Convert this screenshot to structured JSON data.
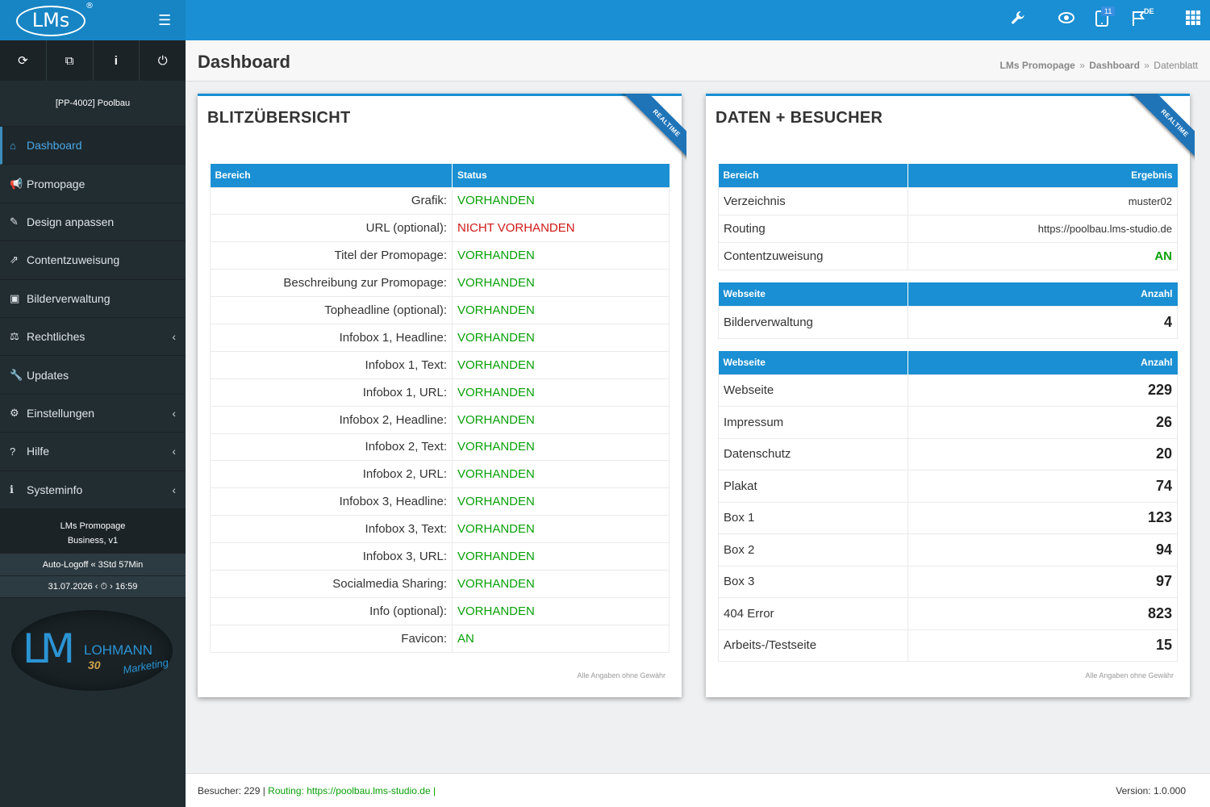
{
  "topbar": {
    "logo_text": "LMs",
    "logo_reg": "®",
    "menu_icon": "☰",
    "icons": [
      "wrench-icon",
      "eye-icon",
      "tablet-icon",
      "flag-icon",
      "grid-icon"
    ],
    "badge_count": "11",
    "flag_label": "DE"
  },
  "sidebar": {
    "tools": [
      "⟳",
      "⧉",
      "i",
      "⏻"
    ],
    "project": "[PP-4002] Poolbau",
    "items": [
      {
        "label": "Dashboard",
        "icon": "⌂"
      },
      {
        "label": "Promopage",
        "icon": "📢"
      },
      {
        "label": "Design anpassen",
        "icon": "✎"
      },
      {
        "label": "Contentzuweisung",
        "icon": "⇗"
      },
      {
        "label": "Bilderverwaltung",
        "icon": "▣"
      },
      {
        "label": "Rechtliches",
        "icon": "⚖",
        "chev": "‹"
      },
      {
        "label": "Updates",
        "icon": "🔧"
      },
      {
        "label": "Einstellungen",
        "icon": "⚙",
        "chev": "‹"
      },
      {
        "label": "Hilfe",
        "icon": "?",
        "chev": "‹"
      },
      {
        "label": "Systeminfo",
        "icon": "ℹ",
        "chev": "‹"
      }
    ],
    "version_line1": "LMs Promopage",
    "version_line2": "Business, v1",
    "autologoff": "Auto-Logoff « 3Std 57Min",
    "datetime": "31.07.2026 ‹ ⏱ › 16:59",
    "brand": {
      "lm": "LM",
      "lohmann": "LOHMANN",
      "jahre": "30",
      "marketing": "Marketing"
    }
  },
  "header": {
    "title": "Dashboard",
    "breadcrumb": [
      "LMs Promopage",
      "Dashboard",
      "Datenblatt"
    ],
    "breadcrumb_sep": "»"
  },
  "left_panel": {
    "title": "BLITZÜBERSICHT",
    "ribbon": "REALTIME",
    "columns": [
      "Bereich",
      "Status"
    ],
    "rows": [
      {
        "k": "Grafik:",
        "v": "VORHANDEN",
        "state": "ok"
      },
      {
        "k": "URL (optional):",
        "v": "NICHT VORHANDEN",
        "state": "bad"
      },
      {
        "k": "Titel der Promopage:",
        "v": "VORHANDEN",
        "state": "ok"
      },
      {
        "k": "Beschreibung zur Promopage:",
        "v": "VORHANDEN",
        "state": "ok"
      },
      {
        "k": "Topheadline (optional):",
        "v": "VORHANDEN",
        "state": "ok"
      },
      {
        "k": "Infobox 1, Headline:",
        "v": "VORHANDEN",
        "state": "ok"
      },
      {
        "k": "Infobox 1, Text:",
        "v": "VORHANDEN",
        "state": "ok"
      },
      {
        "k": "Infobox 1, URL:",
        "v": "VORHANDEN",
        "state": "ok"
      },
      {
        "k": "Infobox 2, Headline:",
        "v": "VORHANDEN",
        "state": "ok"
      },
      {
        "k": "Infobox 2, Text:",
        "v": "VORHANDEN",
        "state": "ok"
      },
      {
        "k": "Infobox 2, URL:",
        "v": "VORHANDEN",
        "state": "ok"
      },
      {
        "k": "Infobox 3, Headline:",
        "v": "VORHANDEN",
        "state": "ok"
      },
      {
        "k": "Infobox 3, Text:",
        "v": "VORHANDEN",
        "state": "ok"
      },
      {
        "k": "Infobox 3, URL:",
        "v": "VORHANDEN",
        "state": "ok"
      },
      {
        "k": "Socialmedia Sharing:",
        "v": "VORHANDEN",
        "state": "ok"
      },
      {
        "k": "Info (optional):",
        "v": "VORHANDEN",
        "state": "ok"
      },
      {
        "k": "Favicon:",
        "v": "AN",
        "state": "ok"
      }
    ],
    "disclaimer": "Alle Angaben ohne Gewähr"
  },
  "right_panel": {
    "title": "DATEN + BESUCHER",
    "ribbon": "REALTIME",
    "table1": {
      "columns": [
        "Bereich",
        "Ergebnis"
      ],
      "rows": [
        {
          "k": "Verzeichnis",
          "v": "muster02"
        },
        {
          "k": "Routing",
          "v": "https://poolbau.lms-studio.de"
        },
        {
          "k": "Contentzuweisung",
          "v": "AN"
        }
      ]
    },
    "table2": {
      "columns": [
        "Webseite",
        "Anzahl"
      ],
      "rows": [
        {
          "k": "Bilderverwaltung",
          "v": "4"
        }
      ]
    },
    "table3": {
      "columns": [
        "Webseite",
        "Anzahl"
      ],
      "rows": [
        {
          "k": "Webseite",
          "v": "229"
        },
        {
          "k": "Impressum",
          "v": "26"
        },
        {
          "k": "Datenschutz",
          "v": "20"
        },
        {
          "k": "Plakat",
          "v": "74"
        },
        {
          "k": "Box 1",
          "v": "123"
        },
        {
          "k": "Box 2",
          "v": "94"
        },
        {
          "k": "Box 3",
          "v": "97"
        },
        {
          "k": "404 Error",
          "v": "823"
        },
        {
          "k": "Arbeits-/Testseite",
          "v": "15"
        }
      ]
    },
    "disclaimer": "Alle Angaben ohne Gewähr"
  },
  "footer": {
    "visitors": "Besucher: 229 | ",
    "routing": "Routing: https://poolbau.lms-studio.de |",
    "version": "Version: 1.0.000"
  },
  "colors": {
    "accent": "#1a8fd3",
    "ok": "#08a008",
    "bad": "#d01818",
    "sidebar": "#222d32"
  }
}
